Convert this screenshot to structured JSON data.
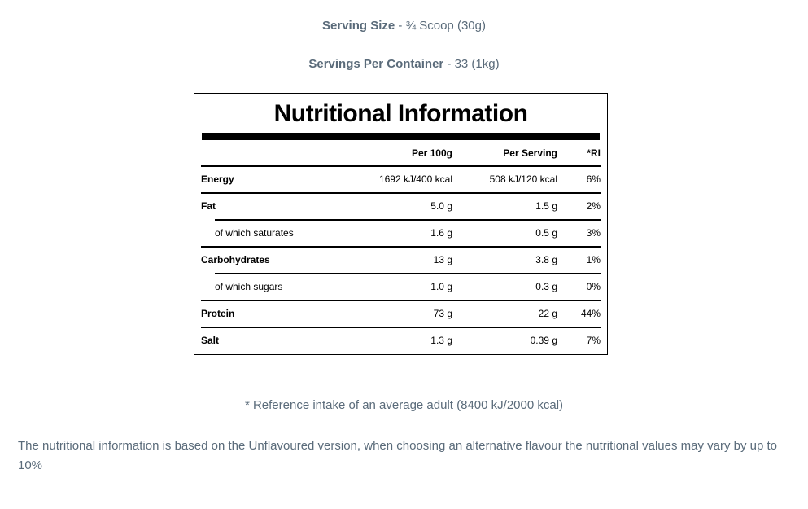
{
  "page": {
    "serving_size": {
      "label": "Serving Size",
      "rest": "- ¾ Scoop (30g)"
    },
    "servings_per_container": {
      "label": "Servings Per Container",
      "rest": "- 33 (1kg)"
    },
    "reference_note": "* Reference intake of an average adult (8400 kJ/2000 kcal)",
    "disclaimer": "The nutritional information is based on the Unflavoured version, when choosing an alternative flavour the nutritional values may vary by up to 10%"
  },
  "table": {
    "title": "Nutritional Information",
    "columns": [
      "Per 100g",
      "Per Serving",
      "*RI"
    ],
    "rows": [
      {
        "label": "Energy",
        "per_100g": "1692 kJ/400 kcal",
        "per_serving": "508 kJ/120 kcal",
        "ri": "6%"
      },
      {
        "label": "Fat",
        "per_100g": "5.0 g",
        "per_serving": "1.5 g",
        "ri": "2%"
      },
      {
        "label": "of which saturates",
        "per_100g": "1.6 g",
        "per_serving": "0.5 g",
        "ri": "3%"
      },
      {
        "label": "Carbohydrates",
        "per_100g": "13 g",
        "per_serving": "3.8 g",
        "ri": "1%"
      },
      {
        "label": "of which sugars",
        "per_100g": "1.0 g",
        "per_serving": "0.3 g",
        "ri": "0%"
      },
      {
        "label": "Protein",
        "per_100g": "73 g",
        "per_serving": "22 g",
        "ri": "44%"
      },
      {
        "label": "Salt",
        "per_100g": "1.3 g",
        "per_serving": "0.39 g",
        "ri": "7%"
      }
    ]
  },
  "colors": {
    "text_slate": "#5a6b7a",
    "table_ink": "#000000",
    "background": "#ffffff"
  }
}
